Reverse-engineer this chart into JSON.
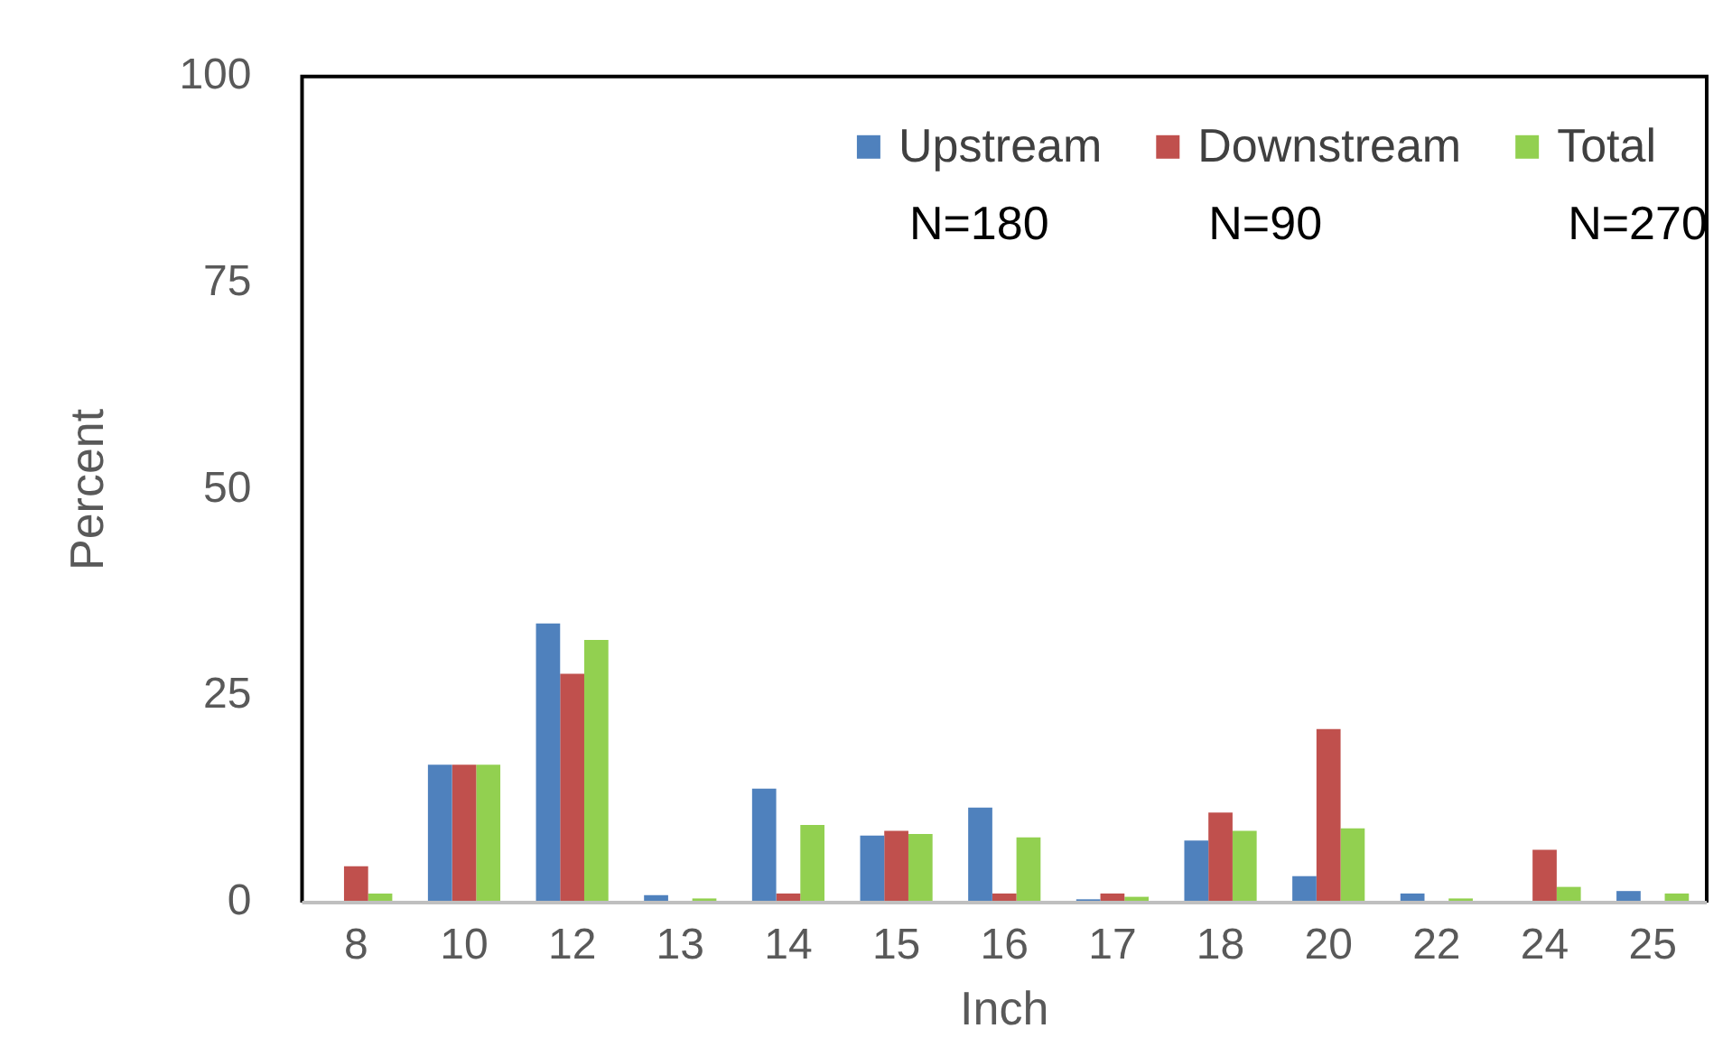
{
  "chart_data": {
    "type": "bar",
    "xlabel": "Inch",
    "ylabel": "Percent",
    "categories": [
      "8",
      "10",
      "12",
      "13",
      "14",
      "15",
      "16",
      "17",
      "18",
      "20",
      "22",
      "24",
      "25"
    ],
    "series": [
      {
        "name": "Upstream",
        "color": "#4f81bd",
        "values": [
          0,
          16.7,
          33.8,
          0.9,
          13.8,
          8.1,
          11.5,
          0.4,
          7.5,
          3.2,
          1.1,
          0,
          1.4
        ]
      },
      {
        "name": "Downstream",
        "color": "#c0504d",
        "values": [
          4.4,
          16.7,
          27.7,
          0,
          1.1,
          8.7,
          1.1,
          1.1,
          10.9,
          21.0,
          0,
          6.4,
          0
        ]
      },
      {
        "name": "Total",
        "color": "#92d050",
        "values": [
          1.1,
          16.7,
          31.8,
          0.5,
          9.4,
          8.3,
          7.9,
          0.7,
          8.7,
          9.0,
          0.5,
          1.9,
          1.1
        ]
      }
    ],
    "ylim": [
      0,
      100
    ],
    "yticks": [
      0,
      25,
      50,
      75,
      100
    ],
    "grid": false,
    "legend": "top right",
    "annotations": [
      "N=180",
      "N=90",
      "N=270"
    ]
  }
}
